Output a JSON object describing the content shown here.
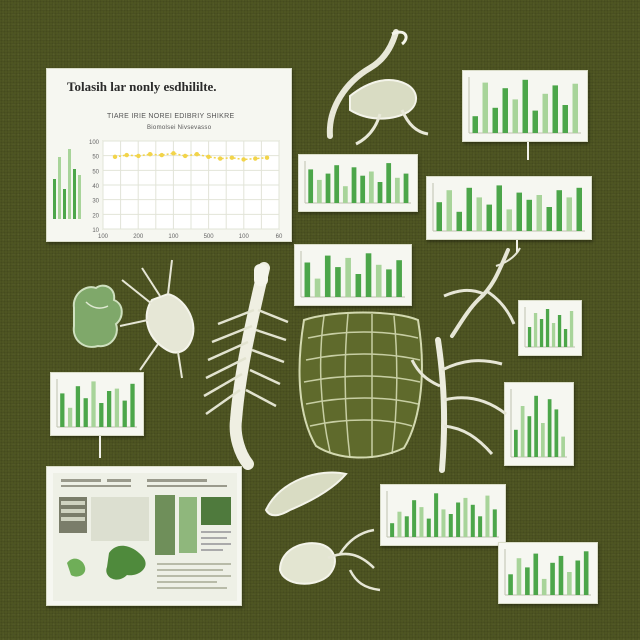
{
  "main_chart": {
    "title": "Tolasih lar nonly esdhililte.",
    "subtitle": "TIARE IRIE NOREI EDIBRIY SHIKRE",
    "axis_caption": "Biomolsei Nivsevasso",
    "y_ticks": [
      "100",
      "50",
      "50",
      "40",
      "30",
      "20",
      "10"
    ],
    "x_ticks": [
      "100",
      "200",
      "100",
      "500",
      "100",
      "60"
    ]
  },
  "colors": {
    "background": "#4e5522",
    "card": "#f6f7f1",
    "bar_green": "#4ca64a",
    "bar_light": "#a8d49a",
    "accent_yellow": "#f2d44a",
    "specimen": "#eaeadb"
  },
  "chart_data": [
    {
      "type": "line",
      "x": [
        1,
        2,
        3,
        4,
        5,
        6,
        7,
        8,
        9,
        10,
        11,
        12,
        13,
        14
      ],
      "series": [
        {
          "values": [
            82,
            84,
            83,
            85,
            84,
            86,
            83,
            85,
            82,
            80,
            81,
            79,
            80,
            81
          ]
        }
      ],
      "ylim": [
        0,
        100
      ]
    },
    {
      "type": "bar",
      "values": [
        30,
        90,
        45,
        80,
        60,
        95,
        40,
        70,
        85,
        50,
        88
      ]
    },
    {
      "type": "bar",
      "values": [
        80,
        55,
        70,
        90,
        40,
        85,
        65,
        75,
        50,
        95,
        60,
        70
      ]
    },
    {
      "type": "bar",
      "values": [
        60,
        85,
        40,
        90,
        70,
        55,
        95,
        45,
        80,
        65,
        75,
        50,
        85,
        70,
        90
      ]
    },
    {
      "type": "bar",
      "values": [
        75,
        40,
        90,
        65,
        85,
        50,
        95,
        70,
        60,
        80
      ]
    },
    {
      "type": "bar",
      "values": [
        50,
        85,
        70,
        95,
        60,
        80,
        45,
        90
      ]
    },
    {
      "type": "bar",
      "values": [
        70,
        40,
        85,
        60,
        95,
        50,
        75,
        80,
        55,
        90
      ]
    },
    {
      "type": "bar",
      "values": [
        40,
        75,
        60,
        90,
        50,
        85,
        70,
        30
      ]
    },
    {
      "type": "bar",
      "values": [
        30,
        55,
        45,
        80,
        65,
        40,
        95,
        60,
        50,
        75,
        85,
        70,
        45,
        90,
        60
      ]
    },
    {
      "type": "bar",
      "values": [
        45,
        80,
        60,
        90,
        35,
        70,
        85,
        50,
        75,
        95
      ]
    }
  ]
}
